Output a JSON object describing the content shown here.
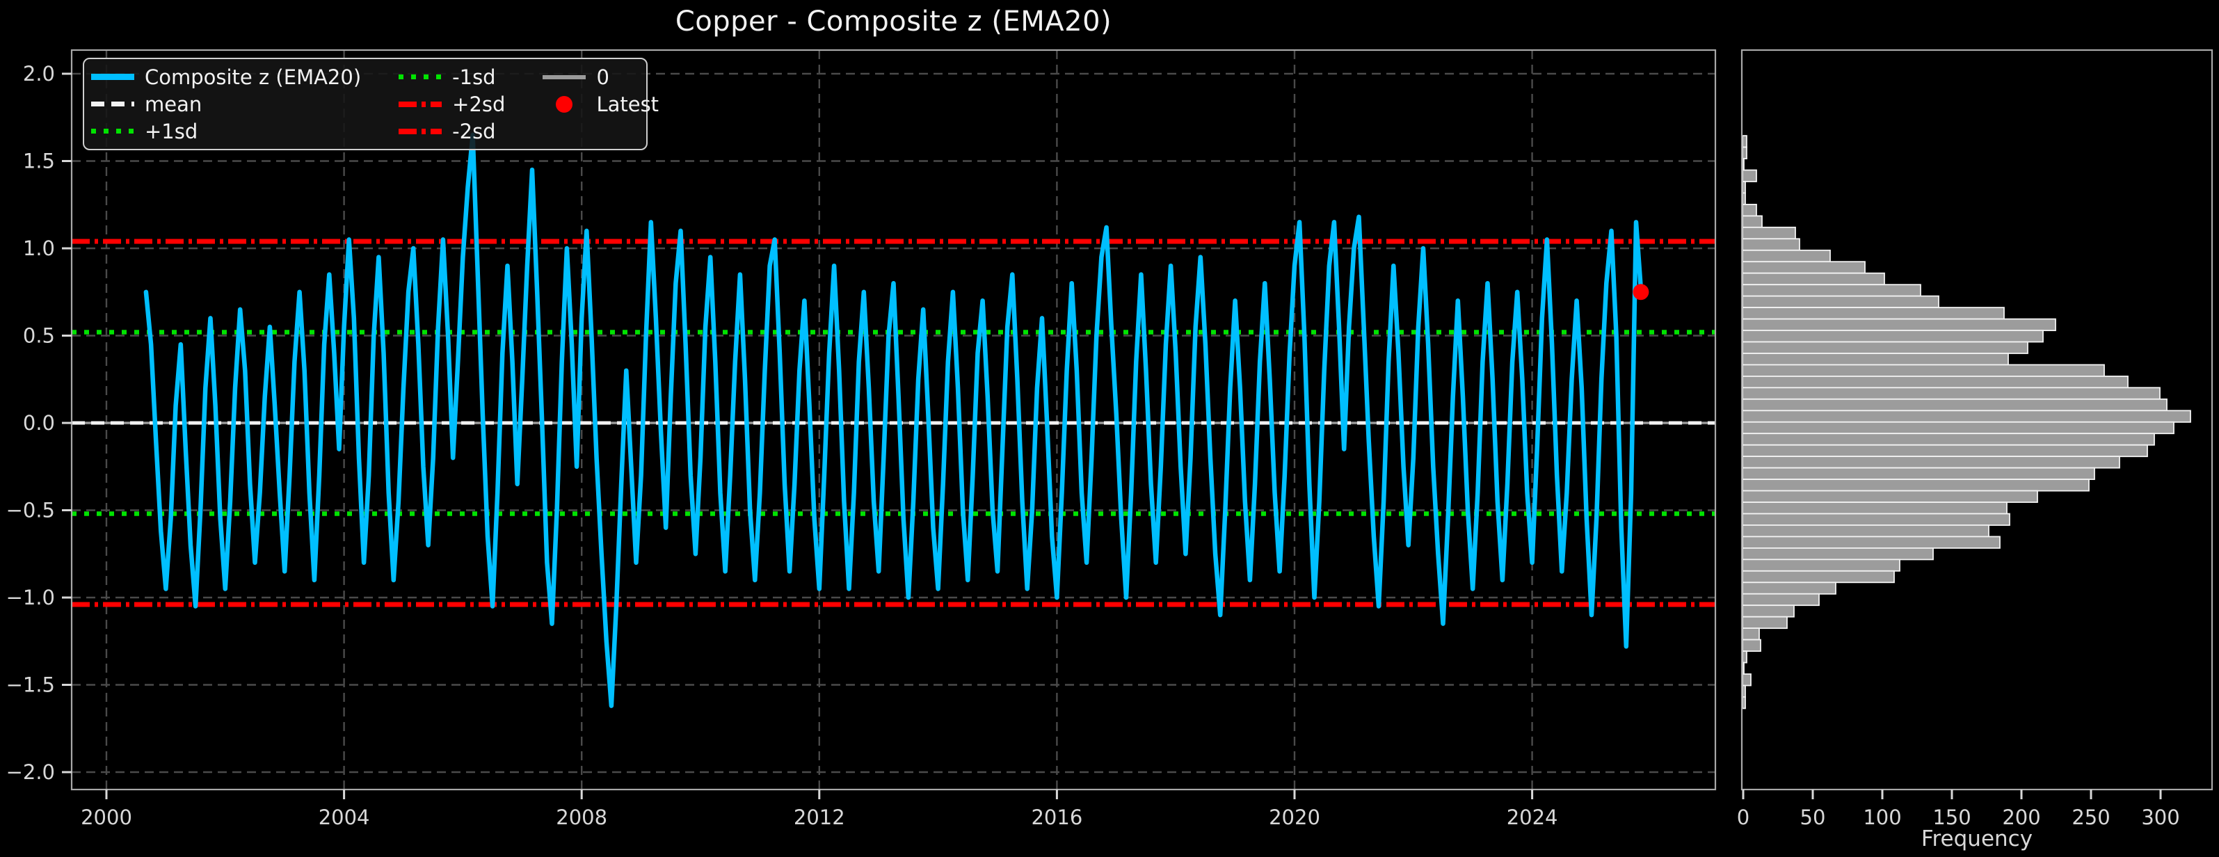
{
  "title": "Copper - Composite z (EMA20)",
  "colors": {
    "background": "#000000",
    "series": "#00BFFF",
    "mean_line": "#f2f2f2",
    "sd1_line": "#00e300",
    "sd2_line": "#ff0000",
    "zero_line": "#9a9a9a",
    "latest_marker": "#ff0000",
    "hist_bar_fill": "#9c9c9c",
    "hist_bar_edge": "#f2f2f2",
    "grid": "#4a4a4a",
    "spine": "#a8a8a8",
    "tick_text": "#d8d8d8",
    "title_text": "#f2f2f2"
  },
  "legend": {
    "items": [
      {
        "label": "Composite z (EMA20)",
        "style": "series"
      },
      {
        "label": "mean",
        "style": "mean"
      },
      {
        "label": "+1sd",
        "style": "sd1"
      },
      {
        "label": "-1sd",
        "style": "sd1"
      },
      {
        "label": "+2sd",
        "style": "sd2"
      },
      {
        "label": "-2sd",
        "style": "sd2"
      },
      {
        "label": "0",
        "style": "zero"
      },
      {
        "label": "Latest",
        "style": "latest"
      }
    ]
  },
  "chart_data": [
    {
      "type": "line",
      "title": "Copper - Composite z (EMA20)",
      "series_name": "Composite z (EMA20)",
      "x_start_year": 2000.6667,
      "x_step_years": 0.083333,
      "values": [
        0.75,
        0.45,
        -0.1,
        -0.62,
        -0.95,
        -0.55,
        0.1,
        0.45,
        -0.15,
        -0.7,
        -1.05,
        -0.5,
        0.2,
        0.6,
        0.1,
        -0.55,
        -0.95,
        -0.45,
        0.2,
        0.65,
        0.3,
        -0.35,
        -0.8,
        -0.4,
        0.15,
        0.55,
        0.1,
        -0.4,
        -0.85,
        -0.3,
        0.35,
        0.75,
        0.3,
        -0.4,
        -0.9,
        -0.3,
        0.45,
        0.85,
        0.4,
        -0.15,
        0.55,
        1.05,
        0.6,
        -0.2,
        -0.8,
        -0.3,
        0.5,
        0.95,
        0.4,
        -0.4,
        -0.9,
        -0.45,
        0.2,
        0.75,
        1.0,
        0.45,
        -0.25,
        -0.7,
        -0.2,
        0.55,
        1.05,
        0.5,
        -0.2,
        0.35,
        0.95,
        1.35,
        1.65,
        0.85,
        0.05,
        -0.65,
        -1.05,
        -0.4,
        0.4,
        0.9,
        0.35,
        -0.35,
        0.25,
        0.9,
        1.45,
        0.75,
        0.0,
        -0.8,
        -1.15,
        -0.5,
        0.35,
        1.0,
        0.45,
        -0.25,
        0.6,
        1.1,
        0.5,
        -0.2,
        -0.75,
        -1.25,
        -1.62,
        -1.05,
        -0.35,
        0.3,
        -0.25,
        -0.8,
        -0.3,
        0.5,
        1.15,
        0.6,
        -0.05,
        -0.6,
        0.15,
        0.8,
        1.1,
        0.45,
        -0.3,
        -0.75,
        -0.2,
        0.55,
        0.95,
        0.35,
        -0.4,
        -0.85,
        -0.3,
        0.35,
        0.85,
        0.25,
        -0.5,
        -0.9,
        -0.4,
        0.3,
        0.9,
        1.05,
        0.4,
        -0.35,
        -0.85,
        -0.35,
        0.3,
        0.7,
        0.1,
        -0.55,
        -0.95,
        -0.3,
        0.4,
        0.9,
        0.3,
        -0.45,
        -0.95,
        -0.4,
        0.35,
        0.75,
        0.2,
        -0.45,
        -0.85,
        -0.2,
        0.5,
        0.8,
        0.15,
        -0.55,
        -1.0,
        -0.45,
        0.25,
        0.65,
        0.05,
        -0.6,
        -0.95,
        -0.35,
        0.35,
        0.75,
        0.2,
        -0.5,
        -0.9,
        -0.3,
        0.4,
        0.7,
        0.15,
        -0.5,
        -0.85,
        -0.15,
        0.55,
        0.85,
        0.25,
        -0.45,
        -0.95,
        -0.5,
        0.2,
        0.6,
        0.0,
        -0.65,
        -1.0,
        -0.4,
        0.3,
        0.8,
        0.3,
        -0.4,
        -0.8,
        -0.2,
        0.5,
        0.95,
        1.12,
        0.55,
        0.05,
        -0.55,
        -1.0,
        -0.4,
        0.35,
        0.85,
        0.3,
        -0.35,
        -0.8,
        -0.25,
        0.45,
        0.9,
        0.4,
        -0.25,
        -0.75,
        -0.2,
        0.55,
        0.95,
        0.45,
        -0.2,
        -0.75,
        -1.1,
        -0.5,
        0.2,
        0.7,
        0.2,
        -0.45,
        -0.9,
        -0.35,
        0.35,
        0.8,
        0.25,
        -0.4,
        -0.85,
        -0.3,
        0.4,
        0.9,
        1.15,
        0.5,
        -0.35,
        -1.0,
        -0.45,
        0.3,
        0.9,
        1.15,
        0.55,
        -0.15,
        0.55,
        1.0,
        1.18,
        0.55,
        -0.1,
        -0.65,
        -1.05,
        -0.45,
        0.35,
        0.9,
        0.4,
        -0.25,
        -0.7,
        -0.2,
        0.55,
        1.0,
        0.45,
        -0.25,
        -0.75,
        -1.15,
        -0.55,
        0.15,
        0.7,
        0.15,
        -0.5,
        -0.95,
        -0.4,
        0.35,
        0.8,
        0.25,
        -0.45,
        -0.9,
        -0.35,
        0.35,
        0.75,
        0.25,
        -0.4,
        -0.8,
        -0.15,
        0.6,
        1.05,
        0.45,
        -0.3,
        -0.85,
        -0.4,
        0.25,
        0.7,
        0.2,
        -0.55,
        -1.1,
        -0.55,
        0.25,
        0.8,
        1.1,
        0.5,
        -0.6,
        -1.28,
        -0.4,
        1.15,
        0.75
      ],
      "xticks": [
        2000,
        2004,
        2008,
        2012,
        2016,
        2020,
        2024
      ],
      "xtick_labels": [
        "2000",
        "2004",
        "2008",
        "2012",
        "2016",
        "2020",
        "2024"
      ],
      "yticks": [
        2.0,
        1.5,
        1.0,
        0.5,
        0.0,
        -0.5,
        -1.0,
        -1.5,
        -2.0
      ],
      "ytick_labels": [
        "2.0",
        "1.5",
        "1.0",
        "0.5",
        "0.0",
        "−0.5",
        "−1.0",
        "−1.5",
        "−2.0"
      ],
      "xlim": [
        1999.42,
        2027.08
      ],
      "ylim": [
        -2.1,
        2.14
      ],
      "grid": true,
      "legend_position": "upper left",
      "reference_lines": [
        {
          "name": "0",
          "value": 0.0,
          "color": "#9a9a9a",
          "style": "solid"
        },
        {
          "name": "mean",
          "value": 0.0,
          "color": "#f2f2f2",
          "style": "dashed"
        },
        {
          "name": "+1sd",
          "value": 0.52,
          "color": "#00e300",
          "style": "dotted"
        },
        {
          "name": "-1sd",
          "value": -0.52,
          "color": "#00e300",
          "style": "dotted"
        },
        {
          "name": "+2sd",
          "value": 1.04,
          "color": "#ff0000",
          "style": "dashdot"
        },
        {
          "name": "-2sd",
          "value": -1.04,
          "color": "#ff0000",
          "style": "dashdot"
        }
      ],
      "latest_point": {
        "year": 2025.83,
        "value": 0.75
      }
    },
    {
      "type": "bar",
      "orientation": "horizontal",
      "xlabel": "Frequency",
      "bin_top_z": 1.645,
      "bin_height_z": 0.0656,
      "values": [
        3,
        3,
        1,
        10,
        2,
        2,
        10,
        14,
        38,
        41,
        63,
        88,
        102,
        128,
        141,
        188,
        225,
        216,
        205,
        191,
        260,
        277,
        300,
        305,
        322,
        310,
        296,
        291,
        271,
        253,
        249,
        212,
        190,
        192,
        177,
        185,
        137,
        113,
        109,
        67,
        55,
        37,
        32,
        12,
        13,
        3,
        1,
        6,
        2,
        2
      ],
      "xticks": [
        0,
        50,
        100,
        150,
        200,
        250,
        300
      ],
      "xtick_labels": [
        "0",
        "50",
        "100",
        "150",
        "200",
        "250",
        "300"
      ],
      "xlim": [
        0,
        338
      ],
      "grid": false
    }
  ]
}
